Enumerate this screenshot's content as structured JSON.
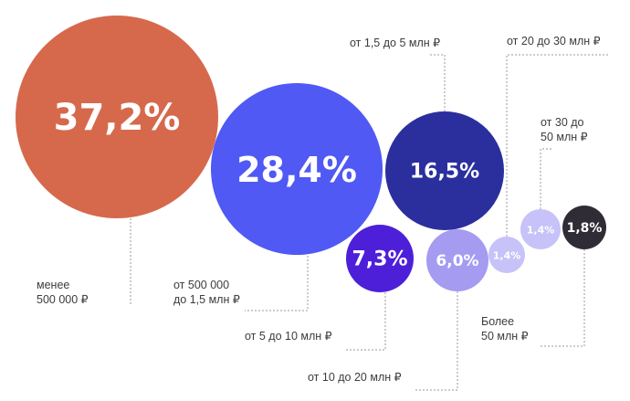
{
  "chart_data": {
    "type": "bubble",
    "unit": "%",
    "series": [
      {
        "category_lines": [
          "менее",
          "500 000 ₽"
        ],
        "value": 37.2,
        "value_label": "37,2%",
        "color": "#d6694c"
      },
      {
        "category_lines": [
          "от 500 000",
          "до 1,5 млн ₽"
        ],
        "value": 28.4,
        "value_label": "28,4%",
        "color": "#5059f4"
      },
      {
        "category_lines": [
          "от 1,5 до 5 млн ₽"
        ],
        "value": 16.5,
        "value_label": "16,5%",
        "color": "#2b2f9d"
      },
      {
        "category_lines": [
          "от 5 до 10 млн ₽"
        ],
        "value": 7.3,
        "value_label": "7,3%",
        "color": "#4d1fd9"
      },
      {
        "category_lines": [
          "от 10 до 20 млн ₽"
        ],
        "value": 6.0,
        "value_label": "6,0%",
        "color": "#a59bf1"
      },
      {
        "category_lines": [
          "от 20 до 30 млн ₽"
        ],
        "value": 1.4,
        "value_label": "1,4%",
        "color": "#c7c2f8"
      },
      {
        "category_lines": [
          "от 30 до",
          "50 млн ₽"
        ],
        "value": 1.4,
        "value_label": "1,4%",
        "color": "#c7c2f8"
      },
      {
        "category_lines": [
          "Более",
          "50 млн ₽"
        ],
        "value": 1.8,
        "value_label": "1,8%",
        "color": "#2f2c36"
      }
    ]
  }
}
